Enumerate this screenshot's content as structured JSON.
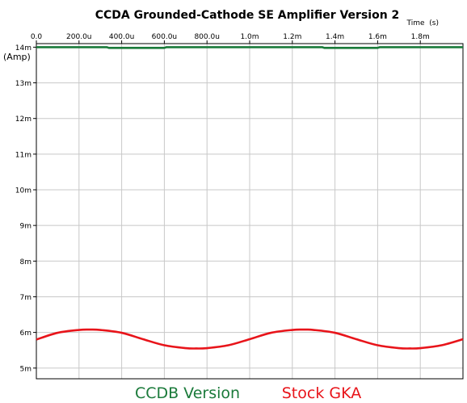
{
  "chart_data": {
    "type": "line",
    "title": "CCDA Grounded-Cathode SE Amplifier Version 2",
    "xlabel": "Time  (s)",
    "ylabel": "(Amp)",
    "xlim": [
      0,
      0.002
    ],
    "ylim": [
      0.0047,
      0.0141
    ],
    "x_ticks": [
      0,
      0.0002,
      0.0004,
      0.0006,
      0.0008,
      0.001,
      0.0012,
      0.0014,
      0.0016,
      0.0018
    ],
    "x_tick_labels": [
      "0.0",
      "200.0u",
      "400.0u",
      "600.0u",
      "800.0u",
      "1.0m",
      "1.2m",
      "1.4m",
      "1.6m",
      "1.8m"
    ],
    "y_ticks": [
      0.005,
      0.006,
      0.007,
      0.008,
      0.009,
      0.01,
      0.011,
      0.012,
      0.013,
      0.014
    ],
    "y_tick_labels": [
      "5m",
      "6m",
      "7m",
      "8m",
      "9m",
      "10m",
      "11m",
      "12m",
      "13m",
      "14m"
    ],
    "grid": true,
    "legend_position": "bottom",
    "series": [
      {
        "name": "CCDB Version",
        "color": "#1a7a3a",
        "x": [
          0,
          0.00033,
          0.00034,
          0.0006,
          0.00061,
          0.00134,
          0.00135,
          0.0016,
          0.00161,
          0.002
        ],
        "y": [
          0.014,
          0.014,
          0.01398,
          0.01398,
          0.014,
          0.014,
          0.01398,
          0.01398,
          0.014,
          0.014
        ]
      },
      {
        "name": "Stock GKA",
        "color": "#e8141a",
        "x": [
          0,
          0.0001,
          0.0002,
          0.00025,
          0.0003,
          0.0004,
          0.0005,
          0.0006,
          0.0007,
          0.00075,
          0.0008,
          0.0009,
          0.001,
          0.0011,
          0.0012,
          0.00125,
          0.0013,
          0.0014,
          0.0015,
          0.0016,
          0.0017,
          0.00175,
          0.0018,
          0.0019,
          0.002
        ],
        "y": [
          0.0058,
          0.00599,
          0.00607,
          0.00608,
          0.00607,
          0.00599,
          0.00581,
          0.00564,
          0.00556,
          0.00555,
          0.00556,
          0.00564,
          0.00581,
          0.00599,
          0.00607,
          0.00608,
          0.00607,
          0.00599,
          0.00581,
          0.00564,
          0.00556,
          0.00555,
          0.00556,
          0.00564,
          0.00581
        ]
      }
    ]
  }
}
